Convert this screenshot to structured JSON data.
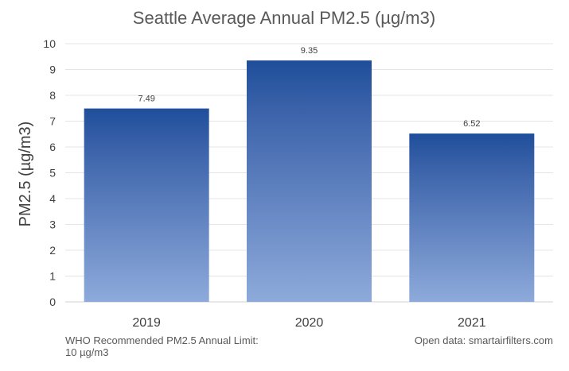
{
  "chart_data": {
    "type": "bar",
    "title": "Seattle Average Annual PM2.5 (µg/m3)",
    "xlabel": "",
    "ylabel": "PM2.5 (µg/m3)",
    "categories": [
      "2019",
      "2020",
      "2021"
    ],
    "values": [
      7.49,
      9.35,
      6.52
    ],
    "data_labels": [
      "7.49",
      "9.35",
      "6.52"
    ],
    "ylim": [
      0,
      10
    ],
    "yticks": [
      "0",
      "1",
      "2",
      "3",
      "4",
      "5",
      "6",
      "7",
      "8",
      "9",
      "10"
    ],
    "grid": true,
    "legend": "none",
    "colors": {
      "bar_top": "#1f4e9a",
      "bar_bottom": "#8eaadb",
      "grid": "#e4e4e4"
    }
  },
  "notes": {
    "who_limit_line1": "WHO Recommended PM2.5 Annual Limit:",
    "who_limit_line2": "10 µg/m3",
    "source": "Open data: smartairfilters.com"
  }
}
